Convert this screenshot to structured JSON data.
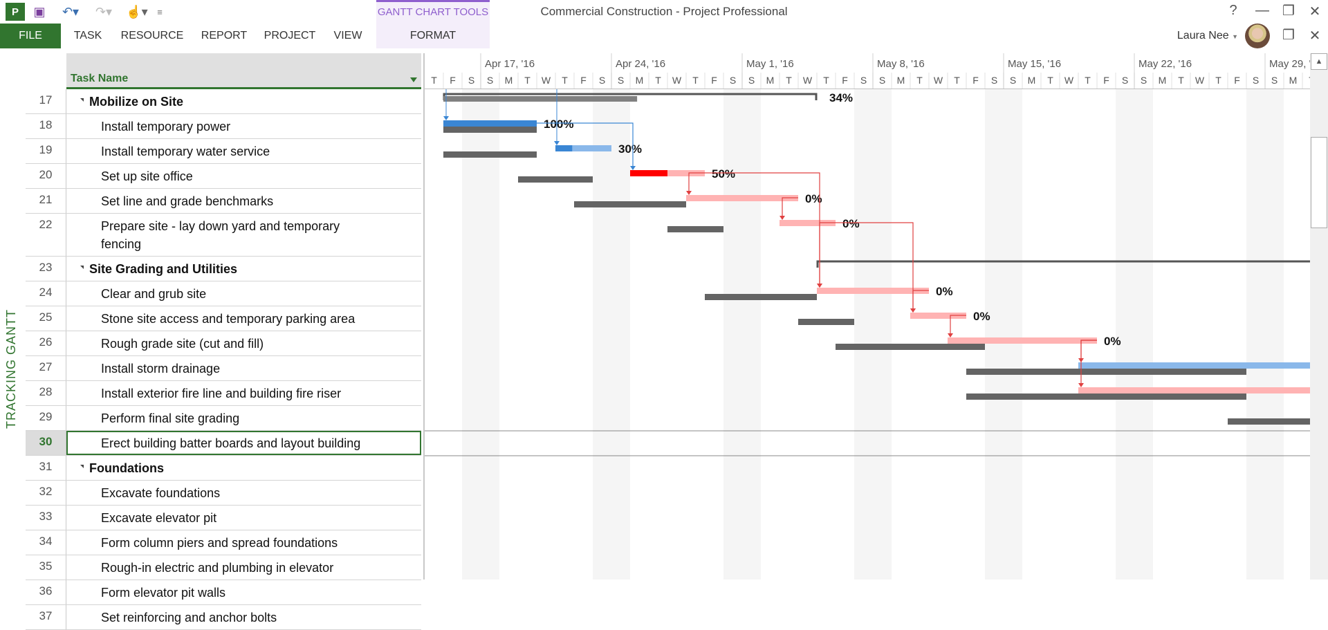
{
  "app": {
    "title": "Commercial Construction - Project Professional",
    "context_tab_group": "GANTT CHART TOOLS",
    "user": "Laura Nee",
    "view_label": "TRACKING GANTT"
  },
  "quick_access": [
    {
      "icon": "project-logo-icon",
      "glyph": "P"
    },
    {
      "icon": "save-icon",
      "glyph": "▣"
    },
    {
      "icon": "undo-icon",
      "glyph": "↶▾"
    },
    {
      "icon": "redo-icon",
      "glyph": "↷▾"
    },
    {
      "icon": "touch-mode-icon",
      "glyph": "☝▾"
    },
    {
      "icon": "customize-icon",
      "glyph": "≡"
    }
  ],
  "ribbon_tabs": [
    "FILE",
    "TASK",
    "RESOURCE",
    "REPORT",
    "PROJECT",
    "VIEW",
    "FORMAT"
  ],
  "window_controls": {
    "help": "?",
    "minimize": "—",
    "restore": "❐",
    "close": "✕"
  },
  "colors": {
    "accent": "#31752f",
    "context": "#8f5fce",
    "task": "#8ab8ea",
    "task_progress": "#3a86d4",
    "critical": "#ffb3b3",
    "critical_progress": "#ff0000",
    "baseline": "#646464",
    "link_task": "#3a86d4",
    "link_critical": "#e04040",
    "weekend": "#f5f5f5"
  },
  "table": {
    "column_header": "Task Name"
  },
  "timescale": {
    "start": "2016-04-14",
    "weeks": [
      "Apr 17, '16",
      "Apr 24, '16",
      "May 1, '16",
      "May 8, '16",
      "May 15, '16",
      "May 22, '16",
      "May 29, '16"
    ],
    "day_letters": [
      "S",
      "M",
      "T",
      "W",
      "T",
      "F",
      "S"
    ]
  },
  "tasks": [
    {
      "id": "17",
      "name": "Mobilize on Site",
      "summary": true,
      "start": "2016-04-15",
      "finish": "2016-05-05",
      "pct": "34%",
      "baseline": [
        "2016-04-15",
        "2016-04-25T09:00"
      ]
    },
    {
      "id": "18",
      "name": "Install temporary power",
      "start": "2016-04-15",
      "finish": "2016-04-19",
      "progress": 1.0,
      "pct": "100%",
      "critical": false,
      "baseline": [
        "2016-04-15",
        "2016-04-19"
      ]
    },
    {
      "id": "19",
      "name": "Install temporary water service",
      "start": "2016-04-21",
      "finish": "2016-04-23",
      "progress": 0.3,
      "pct": "30%",
      "critical": false,
      "baseline": [
        "2016-04-15",
        "2016-04-19"
      ]
    },
    {
      "id": "20",
      "name": "Set up site office",
      "start": "2016-04-25",
      "finish": "2016-04-28",
      "progress": 0.5,
      "pct": "50%",
      "critical": true,
      "baseline": [
        "2016-04-19",
        "2016-04-22"
      ]
    },
    {
      "id": "21",
      "name": "Set line and grade benchmarks",
      "start": "2016-04-28",
      "finish": "2016-05-03",
      "progress": 0,
      "pct": "0%",
      "critical": true,
      "baseline": [
        "2016-04-22",
        "2016-04-27"
      ]
    },
    {
      "id": "22",
      "name": "Prepare site - lay down yard and temporary fencing",
      "start": "2016-05-03",
      "finish": "2016-05-05",
      "progress": 0,
      "pct": "0%",
      "critical": true,
      "baseline": [
        "2016-04-27",
        "2016-04-29"
      ]
    },
    {
      "id": "23",
      "name": "Site Grading and Utilities",
      "summary": true,
      "start": "2016-05-05",
      "finish": "2016-06-01"
    },
    {
      "id": "24",
      "name": "Clear and grub site",
      "start": "2016-05-05",
      "finish": "2016-05-10",
      "progress": 0,
      "pct": "0%",
      "critical": true,
      "baseline": [
        "2016-04-29",
        "2016-05-04"
      ]
    },
    {
      "id": "25",
      "name": "Stone site access and temporary parking area",
      "start": "2016-05-10",
      "finish": "2016-05-12",
      "progress": 0,
      "pct": "0%",
      "critical": true,
      "baseline": [
        "2016-05-04",
        "2016-05-06"
      ]
    },
    {
      "id": "26",
      "name": "Rough grade site (cut and fill)",
      "start": "2016-05-12",
      "finish": "2016-05-19",
      "progress": 0,
      "pct": "0%",
      "critical": true,
      "baseline": [
        "2016-05-06",
        "2016-05-13"
      ]
    },
    {
      "id": "27",
      "name": "Install storm drainage",
      "start": "2016-05-19",
      "finish": "2016-06-01",
      "progress": 0,
      "critical": false,
      "baseline": [
        "2016-05-13",
        "2016-05-27"
      ]
    },
    {
      "id": "28",
      "name": "Install exterior fire line and building fire riser",
      "start": "2016-05-19",
      "finish": "2016-06-01",
      "progress": 0,
      "critical": true,
      "baseline": [
        "2016-05-13",
        "2016-05-27"
      ]
    },
    {
      "id": "29",
      "name": "Perform final site grading",
      "baseline": [
        "2016-05-27",
        "2016-06-01"
      ]
    },
    {
      "id": "30",
      "name": "Erect building batter boards and layout building",
      "selected": true
    },
    {
      "id": "31",
      "name": "Foundations",
      "summary": true
    },
    {
      "id": "32",
      "name": "Excavate foundations"
    },
    {
      "id": "33",
      "name": "Excavate elevator pit"
    },
    {
      "id": "34",
      "name": "Form column piers and spread foundations"
    },
    {
      "id": "35",
      "name": "Rough-in electric and plumbing in elevator"
    },
    {
      "id": "36",
      "name": "Form elevator pit walls"
    },
    {
      "id": "37",
      "name": "Set reinforcing and anchor bolts"
    }
  ],
  "links": [
    [
      "18",
      "20"
    ],
    [
      "20",
      "21"
    ],
    [
      "21",
      "22"
    ],
    [
      "20",
      "24"
    ],
    [
      "22",
      "24"
    ],
    [
      "22",
      "25"
    ],
    [
      "24",
      "25"
    ],
    [
      "25",
      "26"
    ],
    [
      "26",
      "27"
    ],
    [
      "26",
      "28"
    ]
  ]
}
